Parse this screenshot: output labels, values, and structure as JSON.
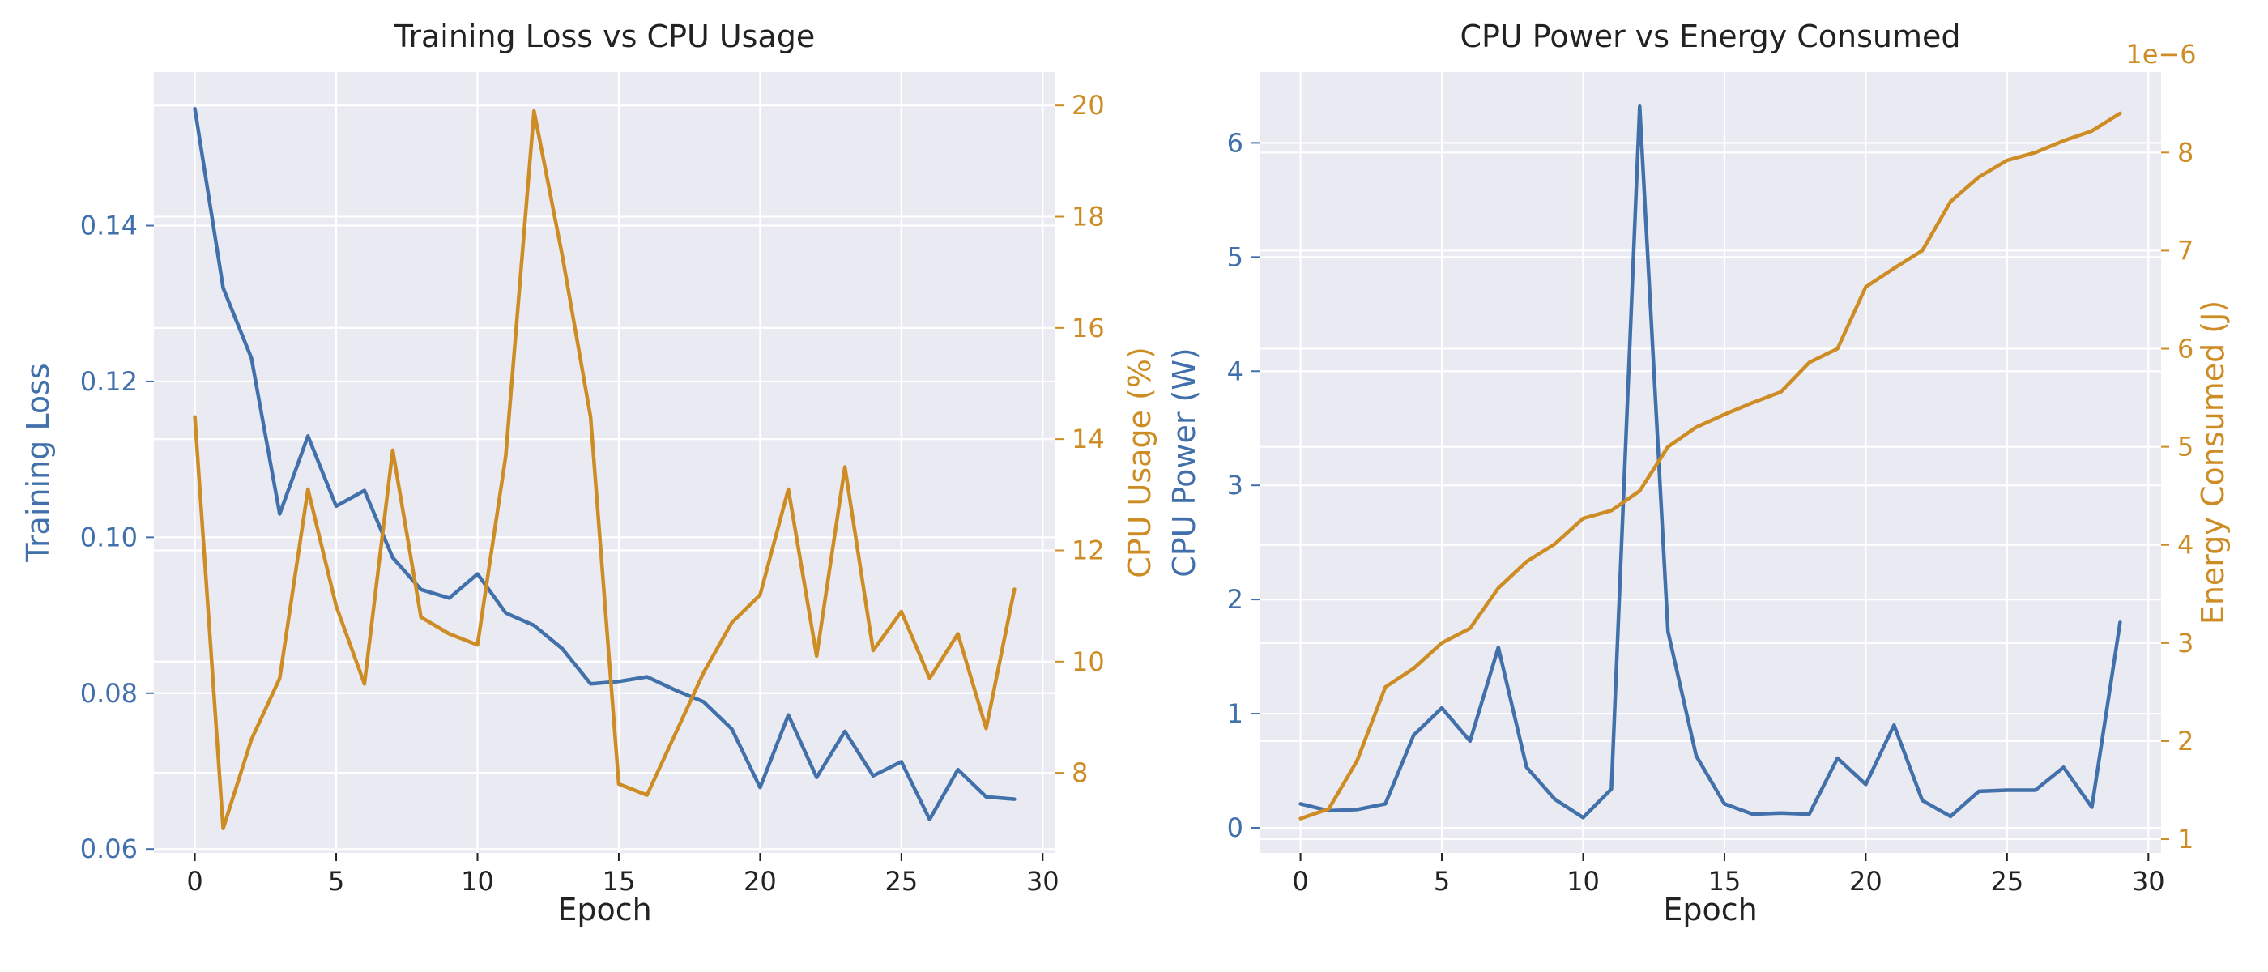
{
  "colors": {
    "background": "#ffffff",
    "plot_bg": "#eaeaf2",
    "grid": "#ffffff",
    "text": "#222222",
    "blue": "#4170aa",
    "orange": "#cd8c24"
  },
  "chart_data": [
    {
      "type": "line",
      "title": "Training Loss vs CPU Usage",
      "xlabel": "Epoch",
      "ylabel": "Training Loss",
      "y2label": "CPU Usage (%)",
      "xlim": [
        -1.45,
        30.45
      ],
      "ylim": [
        0.0595,
        0.1597
      ],
      "y2lim": [
        6.56,
        20.6
      ],
      "xticks": [
        0,
        5,
        10,
        15,
        20,
        25,
        30
      ],
      "yticks": [
        0.06,
        0.08,
        0.1,
        0.12,
        0.14
      ],
      "ytick_labels": [
        "0.06",
        "0.08",
        "0.10",
        "0.12",
        "0.14"
      ],
      "y2ticks": [
        8,
        10,
        12,
        14,
        16,
        18,
        20
      ],
      "y2tick_labels": [
        "8",
        "10",
        "12",
        "14",
        "16",
        "18",
        "20"
      ],
      "x": [
        0,
        1,
        2,
        3,
        4,
        5,
        6,
        7,
        8,
        9,
        10,
        11,
        12,
        13,
        14,
        15,
        16,
        17,
        18,
        19,
        20,
        21,
        22,
        23,
        24,
        25,
        26,
        27,
        28,
        29
      ],
      "series": [
        {
          "axis": "left",
          "color": "blue",
          "values": [
            0.155,
            0.132,
            0.123,
            0.103,
            0.113,
            0.104,
            0.106,
            0.0974,
            0.0933,
            0.0922,
            0.0953,
            0.0903,
            0.0887,
            0.0857,
            0.0812,
            0.0815,
            0.0821,
            0.0804,
            0.0789,
            0.0754,
            0.0679,
            0.0772,
            0.0692,
            0.0751,
            0.0694,
            0.0712,
            0.0638,
            0.0702,
            0.0667,
            0.0664
          ]
        },
        {
          "axis": "right",
          "color": "orange",
          "values": [
            14.4,
            7.0,
            8.6,
            9.7,
            13.1,
            11.0,
            9.6,
            13.8,
            10.8,
            10.5,
            10.3,
            13.7,
            19.9,
            17.3,
            14.4,
            7.8,
            7.6,
            8.7,
            9.8,
            10.7,
            11.2,
            13.1,
            10.1,
            13.5,
            10.2,
            10.9,
            9.7,
            10.5,
            8.8,
            11.3
          ]
        }
      ]
    },
    {
      "type": "line",
      "title": "CPU Power vs Energy Consumed",
      "xlabel": "Epoch",
      "ylabel": "CPU Power (W)",
      "y2label": "Energy Consumed (J)",
      "y2_offset_label": "1e−6",
      "xlim": [
        -1.45,
        30.45
      ],
      "ylim": [
        -0.22,
        6.62
      ],
      "y2lim": [
        0.86,
        8.82
      ],
      "xticks": [
        0,
        5,
        10,
        15,
        20,
        25,
        30
      ],
      "yticks": [
        0,
        1,
        2,
        3,
        4,
        5,
        6
      ],
      "ytick_labels": [
        "0",
        "1",
        "2",
        "3",
        "4",
        "5",
        "6"
      ],
      "y2ticks": [
        1,
        2,
        3,
        4,
        5,
        6,
        7,
        8
      ],
      "y2tick_labels": [
        "1",
        "2",
        "3",
        "4",
        "5",
        "6",
        "7",
        "8"
      ],
      "x": [
        0,
        1,
        2,
        3,
        4,
        5,
        6,
        7,
        8,
        9,
        10,
        11,
        12,
        13,
        14,
        15,
        16,
        17,
        18,
        19,
        20,
        21,
        22,
        23,
        24,
        25,
        26,
        27,
        28,
        29
      ],
      "series": [
        {
          "axis": "left",
          "color": "blue",
          "values": [
            0.21,
            0.15,
            0.16,
            0.21,
            0.81,
            1.05,
            0.76,
            1.58,
            0.53,
            0.25,
            0.09,
            0.34,
            6.32,
            1.72,
            0.63,
            0.21,
            0.12,
            0.13,
            0.12,
            0.61,
            0.38,
            0.9,
            0.24,
            0.1,
            0.32,
            0.33,
            0.33,
            0.53,
            0.18,
            1.8
          ]
        },
        {
          "axis": "right",
          "color": "orange",
          "values": [
            1.21,
            1.31,
            1.8,
            2.55,
            2.74,
            3.0,
            3.15,
            3.56,
            3.83,
            4.01,
            4.27,
            4.35,
            4.55,
            5.0,
            5.2,
            5.33,
            5.45,
            5.56,
            5.86,
            6.0,
            6.63,
            6.82,
            7.0,
            7.5,
            7.75,
            7.92,
            8.0,
            8.12,
            8.22,
            8.4
          ]
        }
      ]
    }
  ]
}
